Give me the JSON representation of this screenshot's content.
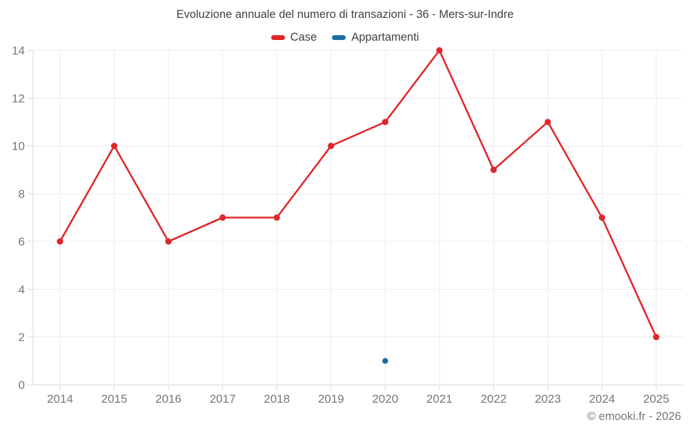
{
  "title": "Evoluzione annuale del numero di transazioni - 36 - Mers-sur-Indre",
  "legend": [
    {
      "label": "Case",
      "color": "#de282c"
    },
    {
      "label": "Appartamenti",
      "color": "#1a6ca8"
    }
  ],
  "footer": {
    "copyright": "© emooki.fr - 2026"
  },
  "theme": {
    "grid_color": "#ebebeb",
    "axis_color": "#d7d7d9",
    "tick_label_color": "#76767b",
    "title_color": "#404046",
    "background": "#ffffff"
  },
  "chart_data": {
    "type": "line",
    "title": "Evoluzione annuale del numero di transazioni - 36 - Mers-sur-Indre",
    "xlabel": "",
    "ylabel": "",
    "x": [
      2014,
      2015,
      2016,
      2017,
      2018,
      2019,
      2020,
      2021,
      2022,
      2023,
      2024,
      2025
    ],
    "series": [
      {
        "name": "Case",
        "color": "#de282c",
        "draw_line": true,
        "marker_radius": 4.6,
        "values": [
          6,
          10,
          6,
          7,
          7,
          10,
          11,
          14,
          9,
          11,
          7,
          2
        ]
      },
      {
        "name": "Appartamenti",
        "color": "#1a6ca8",
        "draw_line": false,
        "marker_radius": 4.2,
        "values": [
          null,
          null,
          null,
          null,
          null,
          null,
          1,
          null,
          null,
          null,
          null,
          null
        ]
      }
    ],
    "ylim": [
      0,
      14
    ],
    "yticks": [
      0,
      2,
      4,
      6,
      8,
      10,
      12,
      14
    ],
    "grid": true,
    "legend_position": "top"
  }
}
